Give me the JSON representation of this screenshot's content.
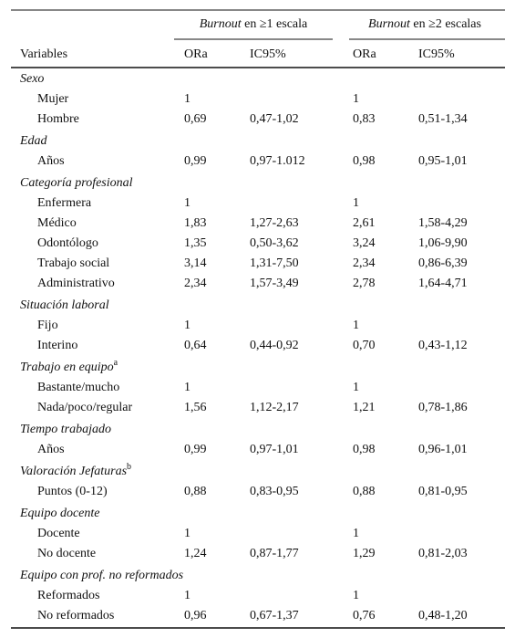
{
  "header": {
    "groups": [
      {
        "italic": "Burnout",
        "text": " en ≥1 escala"
      },
      {
        "italic": "Burnout",
        "text": " en ≥2 escalas"
      }
    ],
    "columns": [
      "Variables",
      "ORa",
      "IC95%",
      "ORa",
      "IC95%"
    ]
  },
  "sections": [
    {
      "title": "Sexo",
      "rows": [
        {
          "label": "Mujer",
          "cells": [
            "1",
            null,
            "1",
            null
          ]
        },
        {
          "label": "Hombre",
          "cells": [
            "0,69",
            "0,47-1,02",
            "0,83",
            "0,51-1,34"
          ]
        }
      ]
    },
    {
      "title": "Edad",
      "rows": [
        {
          "label": "Años",
          "cells": [
            "0,99",
            "0,97-1.012",
            "0,98",
            "0,95-1,01"
          ]
        }
      ]
    },
    {
      "title": "Categoría profesional",
      "rows": [
        {
          "label": "Enfermera",
          "cells": [
            "1",
            null,
            "1",
            null
          ]
        },
        {
          "label": "Médico",
          "cells": [
            "1,83",
            "1,27-2,63",
            "2,61",
            "1,58-4,29"
          ]
        },
        {
          "label": "Odontólogo",
          "cells": [
            "1,35",
            "0,50-3,62",
            "3,24",
            "1,06-9,90"
          ]
        },
        {
          "label": "Trabajo social",
          "cells": [
            "3,14",
            "1,31-7,50",
            "2,34",
            "0,86-6,39"
          ]
        },
        {
          "label": "Administrativo",
          "cells": [
            "2,34",
            "1,57-3,49",
            "2,78",
            "1,64-4,71"
          ]
        }
      ]
    },
    {
      "title": "Situación laboral",
      "rows": [
        {
          "label": "Fijo",
          "cells": [
            "1",
            null,
            "1",
            null
          ]
        },
        {
          "label": "Interino",
          "cells": [
            "0,64",
            "0,44-0,92",
            "0,70",
            "0,43-1,12"
          ]
        }
      ]
    },
    {
      "title": "Trabajo en equipo",
      "note": "a",
      "rows": [
        {
          "label": "Bastante/mucho",
          "cells": [
            "1",
            null,
            "1",
            null
          ]
        },
        {
          "label": "Nada/poco/regular",
          "cells": [
            "1,56",
            "1,12-2,17",
            "1,21",
            "0,78-1,86"
          ]
        }
      ]
    },
    {
      "title": "Tiempo trabajado",
      "rows": [
        {
          "label": "Años",
          "cells": [
            "0,99",
            "0,97-1,01",
            "0,98",
            "0,96-1,01"
          ]
        }
      ]
    },
    {
      "title": "Valoración Jefaturas",
      "note": "b",
      "rows": [
        {
          "label": "Puntos (0-12)",
          "cells": [
            "0,88",
            "0,83-0,95",
            "0,88",
            "0,81-0,95"
          ]
        }
      ]
    },
    {
      "title": "Equipo docente",
      "rows": [
        {
          "label": "Docente",
          "cells": [
            "1",
            null,
            "1",
            null
          ]
        },
        {
          "label": "No docente",
          "cells": [
            "1,24",
            "0,87-1,77",
            "1,29",
            "0,81-2,03"
          ]
        }
      ]
    },
    {
      "title": "Equipo con prof. no reformados",
      "rows": [
        {
          "label": "Reformados",
          "cells": [
            "1",
            null,
            "1",
            null
          ]
        },
        {
          "label": "No reformados",
          "cells": [
            "0,96",
            "0,67-1,37",
            "0,76",
            "0,48-1,20"
          ]
        }
      ]
    }
  ]
}
